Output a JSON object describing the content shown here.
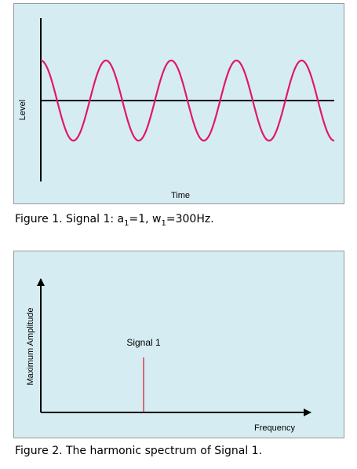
{
  "chart_data": [
    {
      "type": "line",
      "title": "Figure 1. Signal 1: a1=1, w1=300Hz.",
      "caption": {
        "prefix": "Figure 1. Signal 1: a",
        "sub1": "1",
        "mid": "=1, w",
        "sub2": "1",
        "suffix": "=300Hz."
      },
      "xlabel": "Time",
      "ylabel": "Level",
      "series": [
        {
          "name": "Signal 1",
          "amplitude": 1,
          "frequency_hz": 300,
          "cycles_shown": 4.5,
          "phase": "cosine"
        }
      ],
      "line_color": "#e0176e"
    },
    {
      "type": "bar",
      "title": "Figure 2. The harmonic spectrum of Signal 1.",
      "caption": {
        "text": "Figure 2. The harmonic spectrum of Signal 1."
      },
      "xlabel": "Frequency",
      "ylabel": "Maximum Amplitude",
      "categories": [
        "Signal 1"
      ],
      "values": [
        1
      ],
      "annotation": "Signal 1",
      "bar_color": "#d0141e"
    }
  ]
}
